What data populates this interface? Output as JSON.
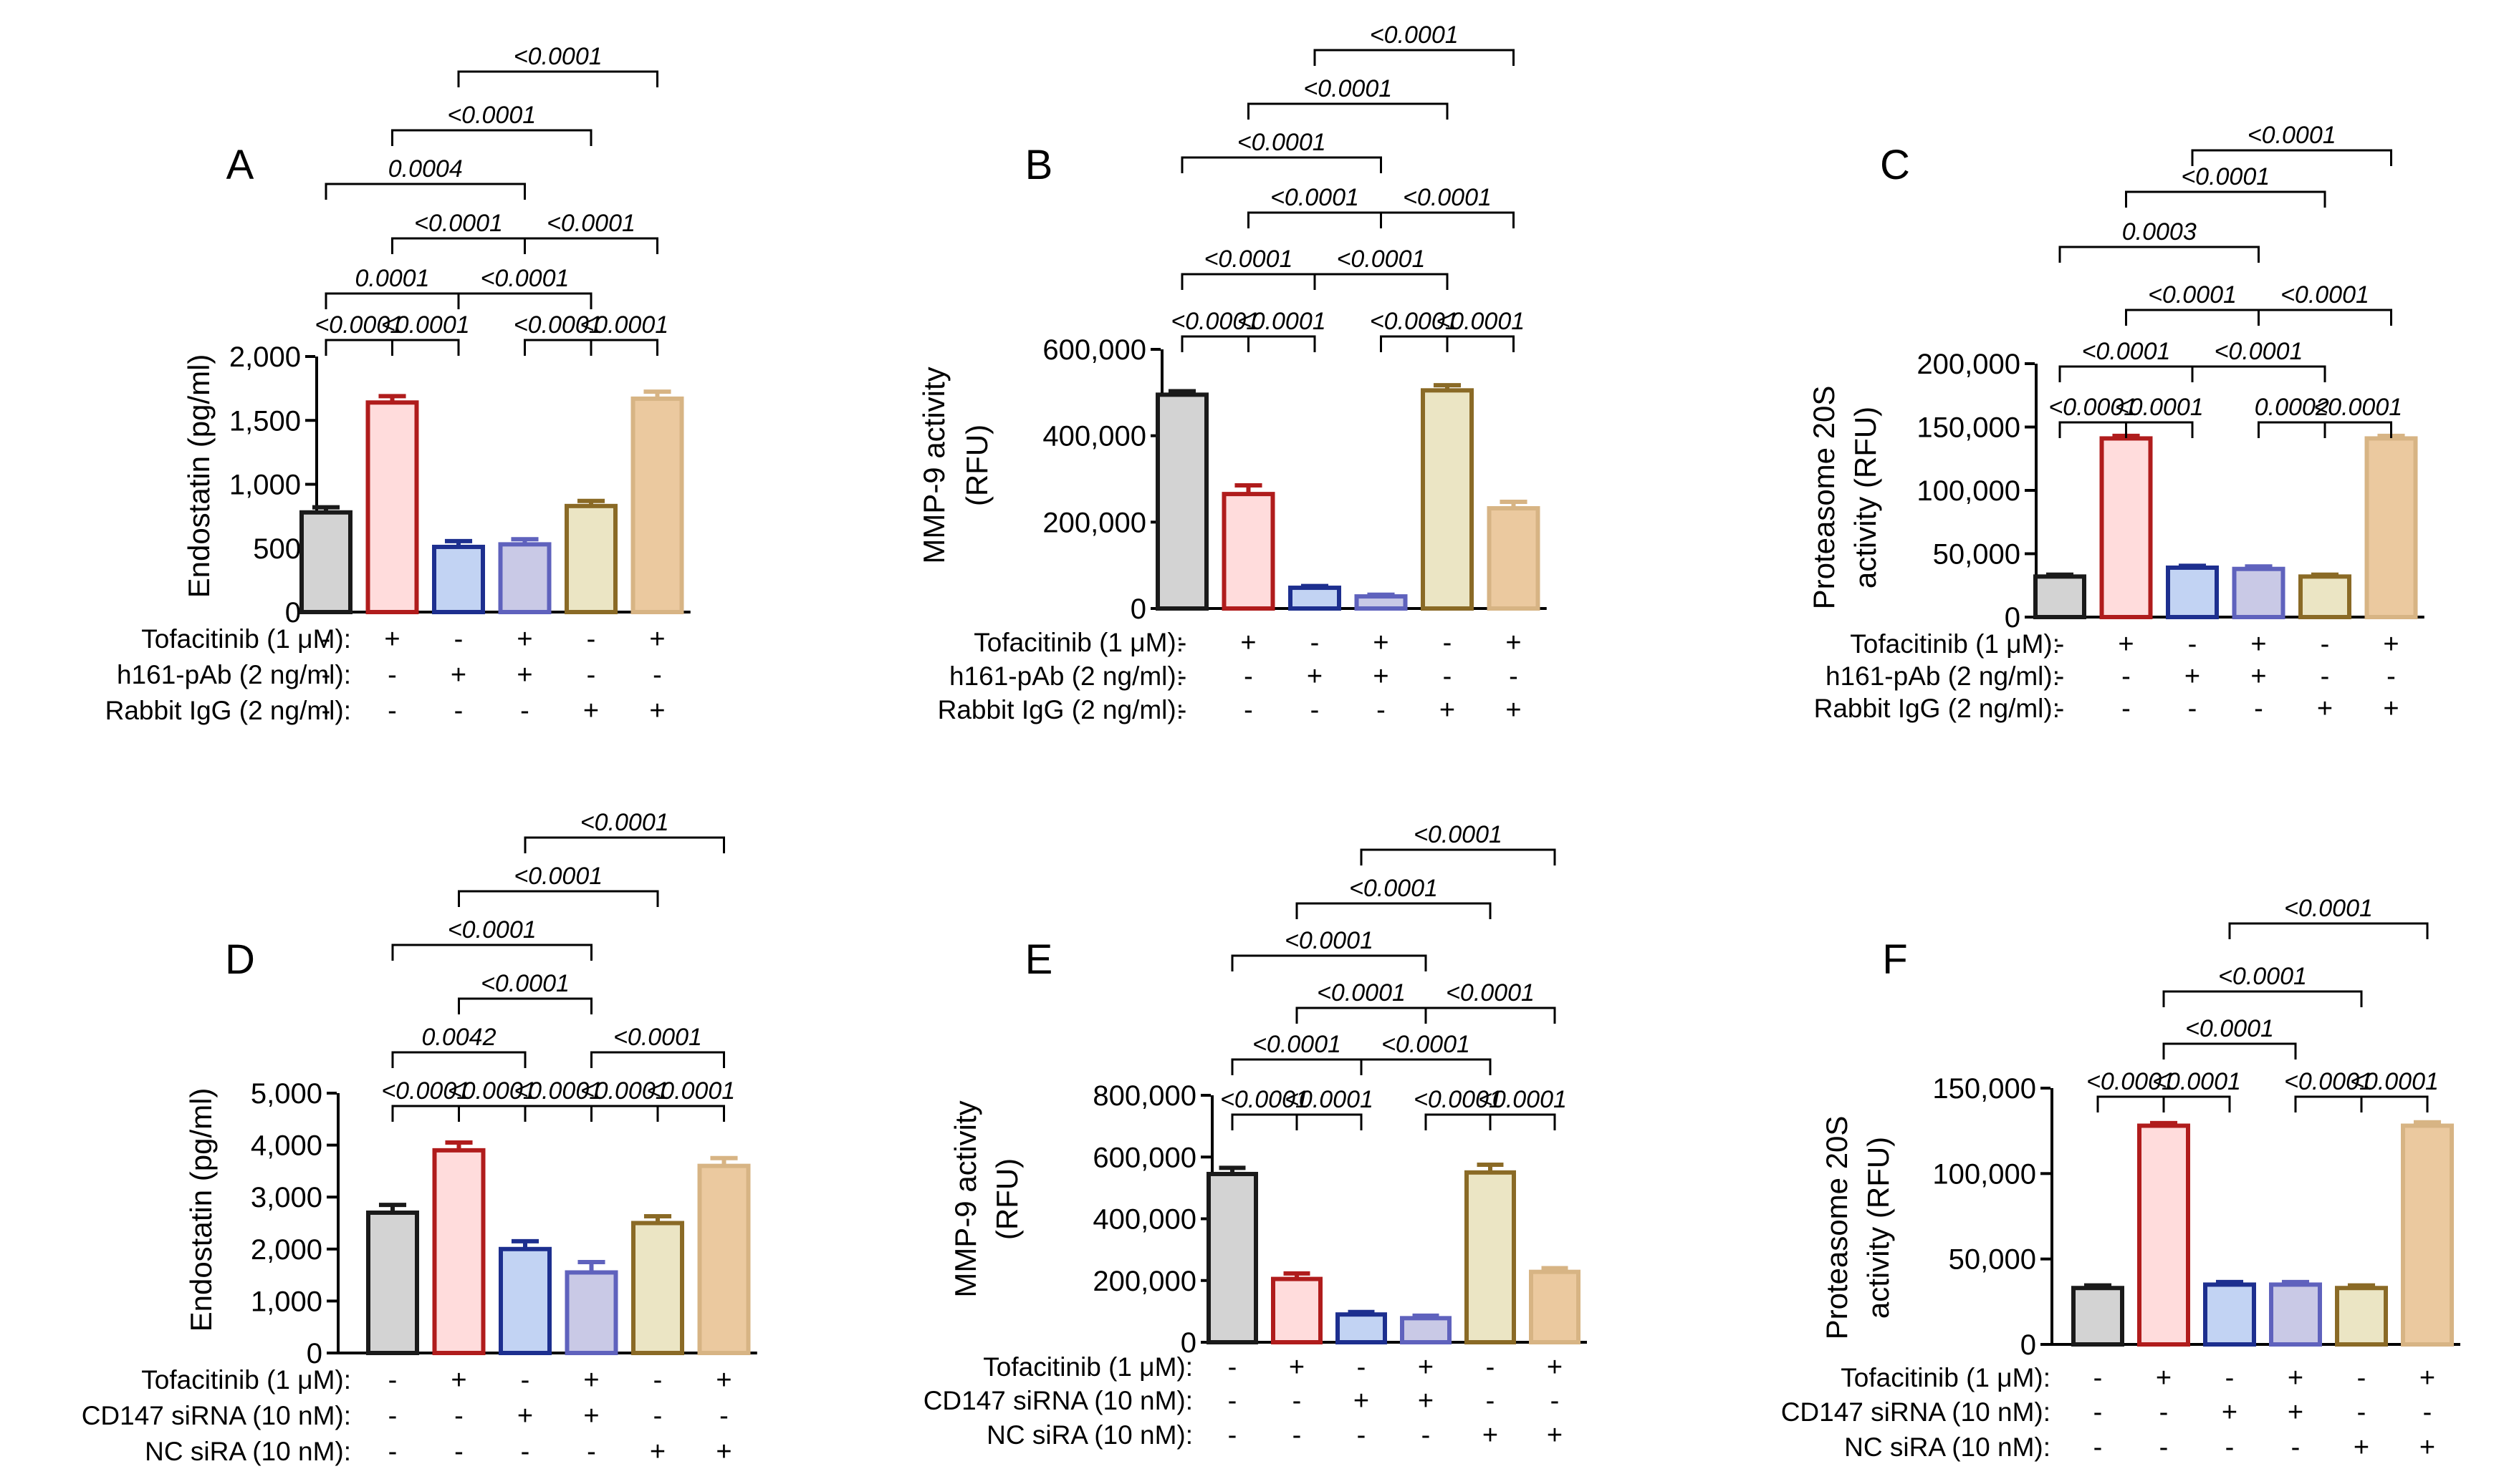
{
  "colors": {
    "fill": [
      "#d3d3d3",
      "#ffdcdc",
      "#c2d3f3",
      "#c9c9e6",
      "#ebe5c4",
      "#ebc99f"
    ],
    "stroke": [
      "#1a1a1a",
      "#b01c1c",
      "#1d2f8f",
      "#5f62bd",
      "#8a6a26",
      "#d7b484"
    ]
  },
  "chart_data": [
    {
      "type": "bar",
      "panel": "A",
      "ylabel_lines": [
        "Endostatin (pg/ml)"
      ],
      "ylim": [
        0,
        2000
      ],
      "yticks": [
        "0",
        "500",
        "1,000",
        "1,500",
        "2,000"
      ],
      "ytick_values": [
        0,
        500,
        1000,
        1500,
        2000
      ],
      "categories": [
        "1",
        "2",
        "3",
        "4",
        "5",
        "6"
      ],
      "values": [
        780,
        1640,
        510,
        530,
        830,
        1670
      ],
      "errors": [
        40,
        50,
        45,
        40,
        40,
        55
      ],
      "conditions": [
        {
          "label": "Tofacitinib (1 μM):",
          "signs": [
            "-",
            "+",
            "-",
            "+",
            "-",
            "+"
          ]
        },
        {
          "label": "h161-pAb (2 ng/ml):",
          "signs": [
            "-",
            "-",
            "+",
            "+",
            "-",
            "-"
          ]
        },
        {
          "label": "Rabbit IgG (2 ng/ml):",
          "signs": [
            "-",
            "-",
            "-",
            "-",
            "+",
            "+"
          ]
        }
      ],
      "comparisons": [
        {
          "from": 1,
          "to": 2,
          "p": "<0.0001"
        },
        {
          "from": 5,
          "to": 6,
          "p": "<0.0001"
        },
        {
          "from": 1,
          "to": 3,
          "p": "0.0001"
        },
        {
          "from": 3,
          "to": 5,
          "p": "<0.0001"
        },
        {
          "from": 1,
          "to": 4,
          "p": "0.0004"
        },
        {
          "from": 4,
          "to": 5,
          "p": "<0.0001"
        },
        {
          "from": 2,
          "to": 3,
          "p": "<0.0001"
        },
        {
          "from": 3,
          "to": 6,
          "p": "<0.0001"
        },
        {
          "from": 2,
          "to": 4,
          "p": "<0.0001"
        },
        {
          "from": 4,
          "to": 6,
          "p": "<0.0001"
        },
        {
          "from": 2,
          "to": 5,
          "p": "<0.0001"
        }
      ]
    },
    {
      "type": "bar",
      "panel": "B",
      "ylabel_lines": [
        "MMP-9 activity",
        "(RFU)"
      ],
      "ylim": [
        0,
        600000
      ],
      "yticks": [
        "0",
        "200,000",
        "400,000",
        "600,000"
      ],
      "ytick_values": [
        0,
        200000,
        400000,
        600000
      ],
      "categories": [
        "1",
        "2",
        "3",
        "4",
        "5",
        "6"
      ],
      "values": [
        495000,
        265000,
        48000,
        28000,
        505000,
        232000
      ],
      "errors": [
        8000,
        20000,
        4000,
        4000,
        12000,
        15000
      ],
      "conditions": [
        {
          "label": "Tofacitinib (1 μM):",
          "signs": [
            "-",
            "+",
            "-",
            "+",
            "-",
            "+"
          ]
        },
        {
          "label": "h161-pAb (2 ng/ml):",
          "signs": [
            "-",
            "-",
            "+",
            "+",
            "-",
            "-"
          ]
        },
        {
          "label": "Rabbit IgG (2 ng/ml):",
          "signs": [
            "-",
            "-",
            "-",
            "-",
            "+",
            "+"
          ]
        }
      ],
      "comparisons": [
        {
          "from": 1,
          "to": 2,
          "p": "<0.0001"
        },
        {
          "from": 5,
          "to": 6,
          "p": "<0.0001"
        },
        {
          "from": 1,
          "to": 3,
          "p": "<0.0001"
        },
        {
          "from": 3,
          "to": 5,
          "p": "<0.0001"
        },
        {
          "from": 1,
          "to": 4,
          "p": "<0.0001"
        },
        {
          "from": 4,
          "to": 6,
          "p": "<0.0001"
        },
        {
          "from": 2,
          "to": 4,
          "p": "<0.0001"
        },
        {
          "from": 4,
          "to": 5,
          "p": "<0.0001"
        },
        {
          "from": 2,
          "to": 3,
          "p": "<0.0001"
        },
        {
          "from": 3,
          "to": 6,
          "p": "<0.0001"
        },
        {
          "from": 2,
          "to": 5,
          "p": "<0.0001"
        }
      ]
    },
    {
      "type": "bar",
      "panel": "C",
      "ylabel_lines": [
        "Proteasome 20S",
        "activity (RFU)"
      ],
      "ylim": [
        0,
        200000
      ],
      "yticks": [
        "0",
        "50,000",
        "100,000",
        "150,000",
        "200,000"
      ],
      "ytick_values": [
        0,
        50000,
        100000,
        150000,
        200000
      ],
      "categories": [
        "1",
        "2",
        "3",
        "4",
        "5",
        "6"
      ],
      "values": [
        32000,
        141000,
        39000,
        38000,
        32000,
        141000
      ],
      "errors": [
        1500,
        2000,
        1500,
        2000,
        1500,
        2000
      ],
      "conditions": [
        {
          "label": "Tofacitinib (1 μM):",
          "signs": [
            "-",
            "+",
            "-",
            "+",
            "-",
            "+"
          ]
        },
        {
          "label": "h161-pAb (2 ng/ml):",
          "signs": [
            "-",
            "-",
            "+",
            "+",
            "-",
            "-"
          ]
        },
        {
          "label": "Rabbit IgG (2 ng/ml):",
          "signs": [
            "-",
            "-",
            "-",
            "-",
            "+",
            "+"
          ]
        }
      ],
      "comparisons": [
        {
          "from": 1,
          "to": 2,
          "p": "<0.0001"
        },
        {
          "from": 4,
          "to": 5,
          "p": "0.0002"
        },
        {
          "from": 5,
          "to": 6,
          "p": "<0.0001"
        },
        {
          "from": 2,
          "to": 3,
          "p": "<0.0001"
        },
        {
          "from": 3,
          "to": 5,
          "p": "<0.0001"
        },
        {
          "from": 1,
          "to": 3,
          "p": "<0.0001"
        },
        {
          "from": 3,
          "to": 6,
          "p": "<0.0001"
        },
        {
          "from": 2,
          "to": 4,
          "p": "<0.0001"
        },
        {
          "from": 4,
          "to": 6,
          "p": "<0.0001"
        },
        {
          "from": 1,
          "to": 4,
          "p": "0.0003"
        },
        {
          "from": 2,
          "to": 5,
          "p": "<0.0001"
        }
      ]
    },
    {
      "type": "bar",
      "panel": "D",
      "ylabel_lines": [
        "Endostatin (pg/ml)"
      ],
      "ylim": [
        0,
        5000
      ],
      "yticks": [
        "0",
        "1,000",
        "2,000",
        "3,000",
        "4,000",
        "5,000"
      ],
      "ytick_values": [
        0,
        1000,
        2000,
        3000,
        4000,
        5000
      ],
      "categories": [
        "1",
        "2",
        "3",
        "4",
        "5",
        "6"
      ],
      "values": [
        2700,
        3900,
        2000,
        1550,
        2500,
        3600
      ],
      "errors": [
        150,
        150,
        150,
        200,
        130,
        150
      ],
      "conditions": [
        {
          "label": "Tofacitinib (1 μM):",
          "signs": [
            "-",
            "+",
            "-",
            "+",
            "-",
            "+"
          ]
        },
        {
          "label": "CD147 siRNA (10 nM):",
          "signs": [
            "-",
            "-",
            "+",
            "+",
            "-",
            "-"
          ]
        },
        {
          "label": "NC siRA  (10 nM):",
          "signs": [
            "-",
            "-",
            "-",
            "-",
            "+",
            "+"
          ]
        }
      ],
      "comparisons": [
        {
          "from": 1,
          "to": 2,
          "p": "<0.0001"
        },
        {
          "from": 2,
          "to": 5,
          "p": "<0.0001"
        },
        {
          "from": 5,
          "to": 6,
          "p": "<0.0001"
        },
        {
          "from": 1,
          "to": 3,
          "p": "0.0042"
        },
        {
          "from": 4,
          "to": 5,
          "p": "<0.0001"
        },
        {
          "from": 1,
          "to": 4,
          "p": "<0.0001"
        },
        {
          "from": 2,
          "to": 3,
          "p": "<0.0001"
        },
        {
          "from": 4,
          "to": 6,
          "p": "<0.0001"
        },
        {
          "from": 2,
          "to": 4,
          "p": "<0.0001"
        },
        {
          "from": 3,
          "to": 6,
          "p": "<0.0001"
        },
        {
          "from": 3,
          "to": 4,
          "p": "<0.0001"
        }
      ]
    },
    {
      "type": "bar",
      "panel": "E",
      "ylabel_lines": [
        "MMP-9 activity",
        "(RFU)"
      ],
      "ylim": [
        0,
        800000
      ],
      "yticks": [
        "0",
        "200,000",
        "400,000",
        "600,000",
        "800,000"
      ],
      "ytick_values": [
        0,
        200000,
        400000,
        600000,
        800000
      ],
      "categories": [
        "1",
        "2",
        "3",
        "4",
        "5",
        "6"
      ],
      "values": [
        545000,
        205000,
        90000,
        78000,
        550000,
        228000
      ],
      "errors": [
        20000,
        18000,
        8000,
        8000,
        25000,
        12000
      ],
      "conditions": [
        {
          "label": "Tofacitinib (1 μM):",
          "signs": [
            "-",
            "+",
            "-",
            "+",
            "-",
            "+"
          ]
        },
        {
          "label": "CD147 siRNA (10 nM):",
          "signs": [
            "-",
            "-",
            "+",
            "+",
            "-",
            "-"
          ]
        },
        {
          "label": "NC siRA  (10 nM):",
          "signs": [
            "-",
            "-",
            "-",
            "-",
            "+",
            "+"
          ]
        }
      ],
      "comparisons": [
        {
          "from": 1,
          "to": 2,
          "p": "<0.0001"
        },
        {
          "from": 4,
          "to": 5,
          "p": "<0.0001"
        },
        {
          "from": 2,
          "to": 3,
          "p": "<0.0001"
        },
        {
          "from": 5,
          "to": 6,
          "p": "<0.0001"
        },
        {
          "from": 1,
          "to": 3,
          "p": "<0.0001"
        },
        {
          "from": 3,
          "to": 5,
          "p": "<0.0001"
        },
        {
          "from": 2,
          "to": 4,
          "p": "<0.0001"
        },
        {
          "from": 4,
          "to": 6,
          "p": "<0.0001"
        },
        {
          "from": 1,
          "to": 4,
          "p": "<0.0001"
        },
        {
          "from": 2,
          "to": 5,
          "p": "<0.0001"
        },
        {
          "from": 3,
          "to": 6,
          "p": "<0.0001"
        }
      ]
    },
    {
      "type": "bar",
      "panel": "F",
      "ylabel_lines": [
        "Proteasome 20S",
        "activity (RFU)"
      ],
      "ylim": [
        0,
        150000
      ],
      "yticks": [
        "0",
        "50,000",
        "100,000",
        "150,000"
      ],
      "ytick_values": [
        0,
        50000,
        100000,
        150000
      ],
      "categories": [
        "1",
        "2",
        "3",
        "4",
        "5",
        "6"
      ],
      "values": [
        33000,
        128000,
        35000,
        35000,
        33000,
        128000
      ],
      "errors": [
        1500,
        1500,
        1500,
        1500,
        1500,
        2000
      ],
      "conditions": [
        {
          "label": "Tofacitinib (1 μM):",
          "signs": [
            "-",
            "+",
            "-",
            "+",
            "-",
            "+"
          ]
        },
        {
          "label": "CD147 siRNA (10 nM):",
          "signs": [
            "-",
            "-",
            "+",
            "+",
            "-",
            "-"
          ]
        },
        {
          "label": "NC siRA  (10 nM):",
          "signs": [
            "-",
            "-",
            "-",
            "-",
            "+",
            "+"
          ]
        }
      ],
      "comparisons": [
        {
          "from": 1,
          "to": 2,
          "p": "<0.0001"
        },
        {
          "from": 2,
          "to": 5,
          "p": "<0.0001"
        },
        {
          "from": 5,
          "to": 6,
          "p": "<0.0001"
        },
        {
          "from": 2,
          "to": 3,
          "p": "<0.0001"
        },
        {
          "from": 4,
          "to": 5,
          "p": "<0.0001"
        },
        {
          "from": 2,
          "to": 4,
          "p": "<0.0001"
        },
        {
          "from": 3,
          "to": 6,
          "p": "<0.0001"
        }
      ]
    }
  ]
}
